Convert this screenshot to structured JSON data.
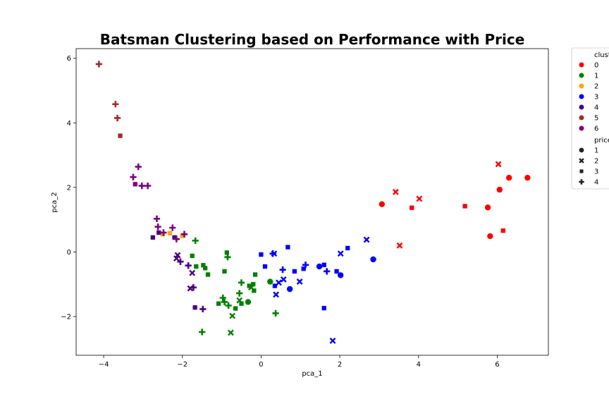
{
  "chart_data": {
    "type": "scatter",
    "title": "Batsman Clustering based on Performance with Price",
    "xlabel": "pca_1",
    "ylabel": "pca_2",
    "xlim": [
      -4.7,
      7.3
    ],
    "ylim": [
      -3.2,
      6.3
    ],
    "xticks": [
      -4,
      -2,
      0,
      2,
      4,
      6
    ],
    "yticks": [
      -2,
      0,
      2,
      4,
      6
    ],
    "xtick_labels": [
      "−4",
      "−2",
      "0",
      "2",
      "4",
      "6"
    ],
    "ytick_labels": [
      "−2",
      "0",
      "2",
      "4",
      "6"
    ],
    "grid": false,
    "legend_placement": "outside-top-right",
    "hue_legend_title": "clust",
    "size_legend_title": "price",
    "clusters": [
      {
        "name": "0",
        "color": "#ff0000"
      },
      {
        "name": "1",
        "color": "#008000"
      },
      {
        "name": "2",
        "color": "#ffa500"
      },
      {
        "name": "3",
        "color": "#0000ff"
      },
      {
        "name": "4",
        "color": "#4b0082"
      },
      {
        "name": "5",
        "color": "#a52a2a"
      },
      {
        "name": "6",
        "color": "#800080"
      }
    ],
    "prices": [
      {
        "name": "1",
        "marker": "circle"
      },
      {
        "name": "2",
        "marker": "x"
      },
      {
        "name": "3",
        "marker": "square"
      },
      {
        "name": "4",
        "marker": "plus"
      }
    ],
    "points": [
      [
        3.07,
        1.48,
        "0",
        "1"
      ],
      [
        3.42,
        1.86,
        "0",
        "2"
      ],
      [
        4.02,
        1.65,
        "0",
        "2"
      ],
      [
        3.83,
        1.37,
        "0",
        "3"
      ],
      [
        3.52,
        0.2,
        "0",
        "2"
      ],
      [
        5.18,
        1.42,
        "0",
        "3"
      ],
      [
        5.76,
        1.38,
        "0",
        "1"
      ],
      [
        5.82,
        0.49,
        "0",
        "1"
      ],
      [
        6.06,
        1.93,
        "0",
        "1"
      ],
      [
        6.03,
        2.72,
        "0",
        "2"
      ],
      [
        6.3,
        2.3,
        "0",
        "1"
      ],
      [
        6.77,
        2.3,
        "0",
        "1"
      ],
      [
        6.15,
        0.66,
        "0",
        "3"
      ],
      [
        -1.67,
        0.35,
        "1",
        "4"
      ],
      [
        -1.75,
        -0.12,
        "1",
        "3"
      ],
      [
        -1.65,
        -0.45,
        "1",
        "3"
      ],
      [
        -1.47,
        -0.41,
        "1",
        "3"
      ],
      [
        -1.42,
        -0.5,
        "1",
        "3"
      ],
      [
        -1.35,
        -0.7,
        "1",
        "3"
      ],
      [
        -1.08,
        -1.6,
        "1",
        "3"
      ],
      [
        -0.97,
        -1.42,
        "1",
        "4"
      ],
      [
        -0.93,
        -1.55,
        "1",
        "4"
      ],
      [
        -0.93,
        -0.6,
        "1",
        "3"
      ],
      [
        -0.87,
        -0.02,
        "1",
        "3"
      ],
      [
        -0.85,
        -0.16,
        "1",
        "4"
      ],
      [
        -0.83,
        -1.66,
        "1",
        "4"
      ],
      [
        -0.73,
        -1.98,
        "1",
        "2"
      ],
      [
        -0.77,
        -2.5,
        "1",
        "2"
      ],
      [
        -0.65,
        -1.75,
        "1",
        "3"
      ],
      [
        -0.55,
        -1.5,
        "1",
        "2"
      ],
      [
        -0.55,
        -1.28,
        "1",
        "4"
      ],
      [
        -0.5,
        -0.95,
        "1",
        "4"
      ],
      [
        -0.5,
        -1.6,
        "1",
        "3"
      ],
      [
        -0.33,
        -1.55,
        "1",
        "1"
      ],
      [
        -0.3,
        -1.05,
        "1",
        "3"
      ],
      [
        -0.25,
        -1.1,
        "1",
        "2"
      ],
      [
        -0.2,
        -1.0,
        "1",
        "3"
      ],
      [
        -0.18,
        -1.2,
        "1",
        "3"
      ],
      [
        -0.15,
        -0.7,
        "1",
        "3"
      ],
      [
        0.23,
        -0.92,
        "1",
        "1"
      ],
      [
        0.37,
        -1.9,
        "1",
        "4"
      ],
      [
        -1.5,
        -2.48,
        "1",
        "4"
      ],
      [
        -2.5,
        0.55,
        "2",
        "3"
      ],
      [
        -2.32,
        0.58,
        "2",
        "3"
      ],
      [
        -2.0,
        0.5,
        "2",
        "3"
      ],
      [
        0.0,
        -0.08,
        "3",
        "3"
      ],
      [
        0.1,
        -0.45,
        "3",
        "3"
      ],
      [
        0.3,
        -0.05,
        "3",
        "4"
      ],
      [
        0.33,
        -0.05,
        "3",
        "2"
      ],
      [
        0.35,
        -1.05,
        "3",
        "3"
      ],
      [
        0.38,
        -1.32,
        "3",
        "2"
      ],
      [
        0.45,
        -0.95,
        "3",
        "2"
      ],
      [
        0.55,
        -0.55,
        "3",
        "4"
      ],
      [
        0.57,
        -0.85,
        "3",
        "2"
      ],
      [
        0.68,
        0.15,
        "3",
        "3"
      ],
      [
        0.73,
        -1.15,
        "3",
        "1"
      ],
      [
        0.85,
        -0.6,
        "3",
        "3"
      ],
      [
        0.98,
        -0.92,
        "3",
        "2"
      ],
      [
        1.08,
        -0.52,
        "3",
        "3"
      ],
      [
        1.13,
        -0.4,
        "3",
        "4"
      ],
      [
        1.48,
        -0.45,
        "3",
        "1"
      ],
      [
        1.6,
        -0.4,
        "3",
        "3"
      ],
      [
        1.6,
        -1.74,
        "3",
        "3"
      ],
      [
        1.67,
        -0.6,
        "3",
        "4"
      ],
      [
        1.92,
        -0.6,
        "3",
        "3"
      ],
      [
        2.02,
        -0.72,
        "3",
        "1"
      ],
      [
        2.02,
        -0.05,
        "3",
        "2"
      ],
      [
        2.2,
        0.12,
        "3",
        "3"
      ],
      [
        1.82,
        -2.75,
        "3",
        "2"
      ],
      [
        2.68,
        0.38,
        "3",
        "2"
      ],
      [
        2.85,
        -0.23,
        "3",
        "1"
      ],
      [
        -2.75,
        0.45,
        "4",
        "3"
      ],
      [
        -2.6,
        0.6,
        "4",
        "3"
      ],
      [
        -2.2,
        0.45,
        "4",
        "3"
      ],
      [
        -2.15,
        -0.2,
        "4",
        "2"
      ],
      [
        -2.12,
        -0.1,
        "4",
        "2"
      ],
      [
        -2.05,
        -0.3,
        "4",
        "4"
      ],
      [
        -1.85,
        -0.42,
        "4",
        "4"
      ],
      [
        -1.8,
        -1.13,
        "4",
        "2"
      ],
      [
        -1.75,
        -0.65,
        "4",
        "2"
      ],
      [
        -1.72,
        -1.1,
        "4",
        "4"
      ],
      [
        -1.68,
        -1.72,
        "4",
        "3"
      ],
      [
        -1.48,
        -1.77,
        "4",
        "4"
      ],
      [
        -4.12,
        5.82,
        "5",
        "4"
      ],
      [
        -3.7,
        4.58,
        "5",
        "4"
      ],
      [
        -3.65,
        4.15,
        "5",
        "4"
      ],
      [
        -3.58,
        3.6,
        "5",
        "3"
      ],
      [
        -3.25,
        2.32,
        "6",
        "4"
      ],
      [
        -3.2,
        2.1,
        "6",
        "3"
      ],
      [
        -3.12,
        2.64,
        "6",
        "4"
      ],
      [
        -3.03,
        2.05,
        "6",
        "4"
      ],
      [
        -2.88,
        2.05,
        "6",
        "4"
      ],
      [
        -2.65,
        1.03,
        "6",
        "4"
      ],
      [
        -2.62,
        0.78,
        "6",
        "4"
      ],
      [
        -2.48,
        0.6,
        "6",
        "4"
      ],
      [
        -2.25,
        0.75,
        "6",
        "4"
      ],
      [
        -2.15,
        0.4,
        "6",
        "4"
      ],
      [
        -1.95,
        0.55,
        "6",
        "4"
      ]
    ]
  }
}
